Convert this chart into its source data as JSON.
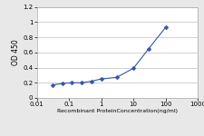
{
  "x": [
    0.031,
    0.063,
    0.125,
    0.25,
    0.5,
    1,
    3,
    10,
    30,
    100
  ],
  "y": [
    0.17,
    0.19,
    0.2,
    0.2,
    0.22,
    0.25,
    0.27,
    0.39,
    0.65,
    0.93
  ],
  "line_color": "#3355aa",
  "marker": "D",
  "marker_size": 2.5,
  "marker_facecolor": "#3355aa",
  "ylabel": "OD 450",
  "xlabel": "Recombinant ProteinConcentration(ng/ml)",
  "ylim": [
    0,
    1.2
  ],
  "xlim": [
    0.01,
    1000
  ],
  "yticks": [
    0,
    0.2,
    0.4,
    0.6,
    0.8,
    1.0,
    1.2
  ],
  "xtick_vals": [
    0.01,
    0.1,
    1,
    10,
    100,
    1000
  ],
  "grid_color": "#c0c0c0",
  "background_color": "#e8e8e8",
  "plot_bg": "#ffffff",
  "spine_color": "#aaaaaa",
  "ylabel_fontsize": 5.5,
  "xlabel_fontsize": 4.5,
  "tick_fontsize": 5
}
